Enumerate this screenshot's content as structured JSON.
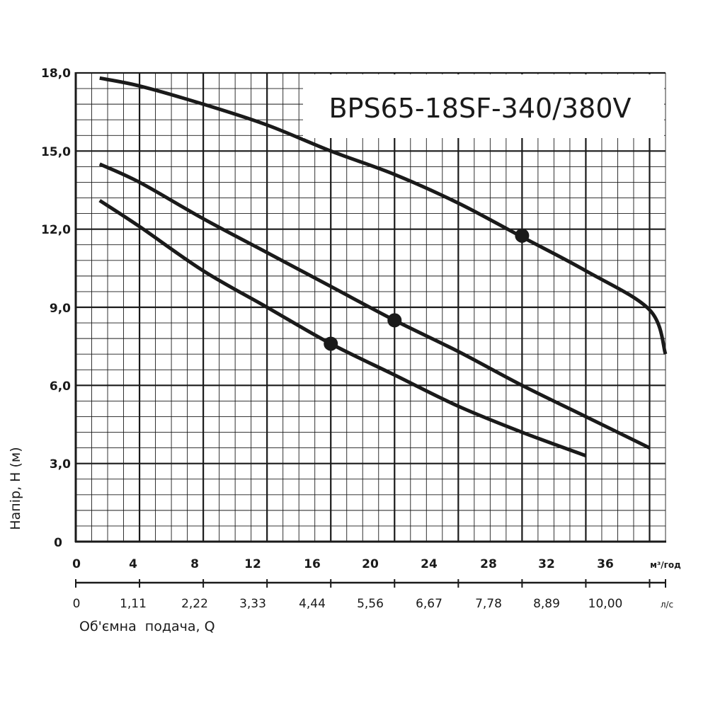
{
  "chart_data": {
    "type": "line",
    "title": "BPS65-18SF-340/380V",
    "ylabel": "Напір, H (м)",
    "xlabel": "Об'ємна  подача, Q",
    "x_unit": "м³/год",
    "x2_unit": "л/с",
    "xlim": [
      0,
      37
    ],
    "ylim": [
      0,
      18
    ],
    "grid": true,
    "y_ticks": [
      "0",
      "3,0",
      "6,0",
      "9,0",
      "12,0",
      "15,0",
      "18,0"
    ],
    "x_ticks": [
      "0",
      "4",
      "8",
      "12",
      "16",
      "20",
      "24",
      "28",
      "32",
      "36"
    ],
    "x2_ticks": [
      "0",
      "1,11",
      "2,22",
      "3,33",
      "4,44",
      "5,56",
      "6,67",
      "7,78",
      "8,89",
      "10,00"
    ],
    "series": [
      {
        "x": [
          1.5,
          4,
          8,
          12,
          16,
          20,
          24,
          28,
          32,
          36,
          37
        ],
        "y": [
          17.8,
          17.5,
          16.8,
          16.0,
          15.0,
          14.1,
          13.0,
          11.7,
          10.4,
          8.9,
          7.2
        ],
        "marker": {
          "x": 28,
          "y": 11.75
        }
      },
      {
        "x": [
          1.5,
          4,
          8,
          12,
          16,
          20,
          24,
          28,
          32,
          36
        ],
        "y": [
          14.5,
          13.8,
          12.4,
          11.1,
          9.8,
          8.5,
          7.3,
          6.0,
          4.8,
          3.6
        ],
        "marker": {
          "x": 20,
          "y": 8.5
        }
      },
      {
        "x": [
          1.5,
          4,
          8,
          12,
          16,
          20,
          24,
          28,
          32
        ],
        "y": [
          13.1,
          12.1,
          10.4,
          9.0,
          7.6,
          6.4,
          5.2,
          4.2,
          3.3
        ],
        "marker": {
          "x": 16,
          "y": 7.6
        }
      }
    ]
  }
}
